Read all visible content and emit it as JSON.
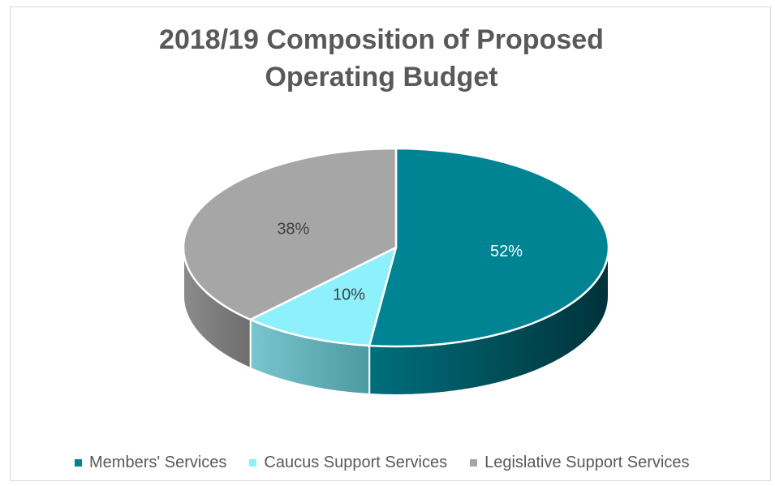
{
  "chart_data": {
    "type": "pie",
    "title": "2018/19 Composition of Proposed Operating Budget",
    "categories": [
      "Members' Services",
      "Caucus Support Services",
      "Legislative Support Services"
    ],
    "values": [
      52,
      10,
      38
    ],
    "labels": [
      "52%",
      "10%",
      "38%"
    ],
    "colors": [
      "#008493",
      "#8df0fb",
      "#a6a6a6"
    ],
    "legend_position": "bottom",
    "style": "3d"
  }
}
